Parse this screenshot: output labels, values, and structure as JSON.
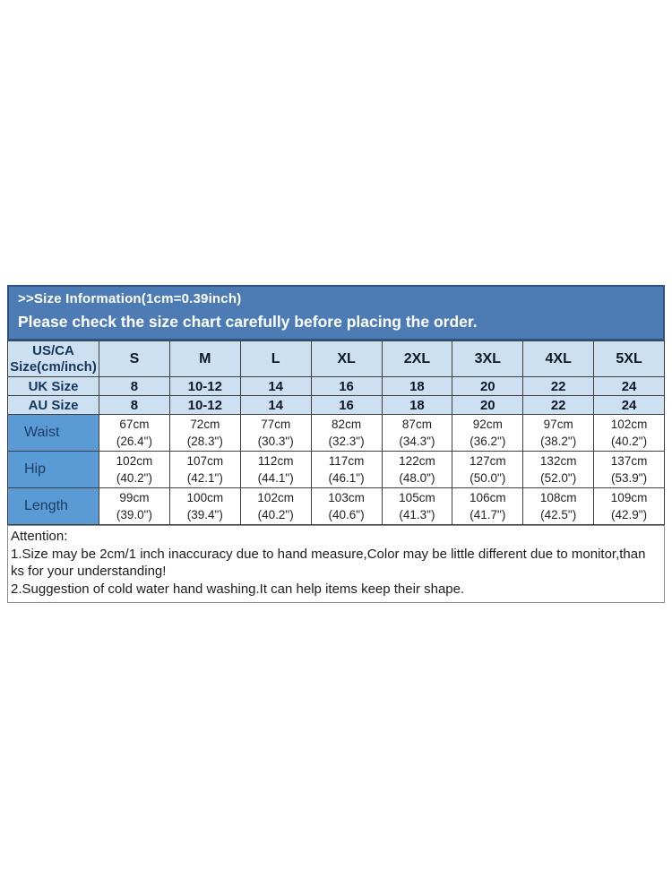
{
  "banner": {
    "line1": ">>Size Information(1cm=0.39inch)",
    "line2": "Please check the size chart carefully before placing the order."
  },
  "table": {
    "corner": {
      "line1": "US/CA",
      "line2": "Size(cm/inch)"
    },
    "size_headers": [
      "S",
      "M",
      "L",
      "XL",
      "2XL",
      "3XL",
      "4XL",
      "5XL"
    ],
    "size_rows": [
      {
        "label": "UK Size",
        "values": [
          "8",
          "10-12",
          "14",
          "16",
          "18",
          "20",
          "22",
          "24"
        ]
      },
      {
        "label": "AU Size",
        "values": [
          "8",
          "10-12",
          "14",
          "16",
          "18",
          "20",
          "22",
          "24"
        ]
      }
    ],
    "measure_rows": [
      {
        "label": "Waist",
        "values": [
          {
            "cm": "67cm",
            "in": "(26.4\")"
          },
          {
            "cm": "72cm",
            "in": "(28.3\")"
          },
          {
            "cm": "77cm",
            "in": "(30.3\")"
          },
          {
            "cm": "82cm",
            "in": "(32.3\")"
          },
          {
            "cm": "87cm",
            "in": "(34.3\")"
          },
          {
            "cm": "92cm",
            "in": "(36.2\")"
          },
          {
            "cm": "97cm",
            "in": "(38.2\")"
          },
          {
            "cm": "102cm",
            "in": "(40.2\")"
          }
        ]
      },
      {
        "label": "Hip",
        "values": [
          {
            "cm": "102cm",
            "in": "(40.2\")"
          },
          {
            "cm": "107cm",
            "in": "(42.1\")"
          },
          {
            "cm": "112cm",
            "in": "(44.1\")"
          },
          {
            "cm": "117cm",
            "in": "(46.1\")"
          },
          {
            "cm": "122cm",
            "in": "(48.0\")"
          },
          {
            "cm": "127cm",
            "in": "(50.0\")"
          },
          {
            "cm": "132cm",
            "in": "(52.0\")"
          },
          {
            "cm": "137cm",
            "in": "(53.9\")"
          }
        ]
      },
      {
        "label": "Length",
        "values": [
          {
            "cm": "99cm",
            "in": "(39.0\")"
          },
          {
            "cm": "100cm",
            "in": "(39.4\")"
          },
          {
            "cm": "102cm",
            "in": "(40.2\")"
          },
          {
            "cm": "103cm",
            "in": "(40.6\")"
          },
          {
            "cm": "105cm",
            "in": "(41.3\")"
          },
          {
            "cm": "106cm",
            "in": "(41.7\")"
          },
          {
            "cm": "108cm",
            "in": "(42.5\")"
          },
          {
            "cm": "109cm",
            "in": "(42.9\")"
          }
        ]
      }
    ]
  },
  "attention": {
    "lines": [
      "Attention:",
      "1.Size may be 2cm/1 inch inaccuracy due to hand measure,Color may be little different due to monitor,than",
      "ks for your understanding!",
      "2.Suggestion of cold water hand washing.It can help items keep their shape."
    ]
  },
  "colors": {
    "banner_bg": "#4d7cb5",
    "banner_border": "#2f5382",
    "banner_text": "#ffffff",
    "header_row_bg": "#cde0f2",
    "label_col_bg": "#5b9bd5",
    "header_text": "#15355c",
    "cell_text": "#222222",
    "grid_border": "#3f3f3f",
    "attention_border": "#8a8a8a"
  }
}
